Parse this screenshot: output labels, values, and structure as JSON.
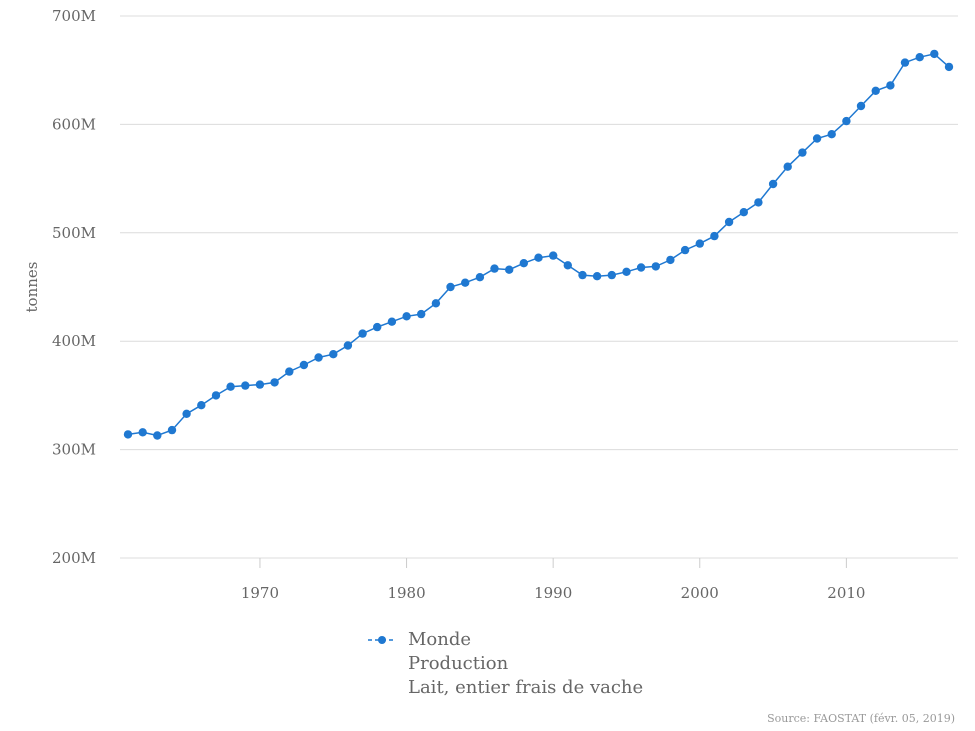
{
  "chart_data": {
    "type": "line",
    "ylabel": "tonnes",
    "xlim": [
      1961,
      2017
    ],
    "ylim": [
      200000000,
      700000000
    ],
    "y_ticks": [
      200000000,
      300000000,
      400000000,
      500000000,
      600000000,
      700000000
    ],
    "y_tick_labels": [
      "200M",
      "300M",
      "400M",
      "500M",
      "600M",
      "700M"
    ],
    "x_ticks": [
      1970,
      1980,
      1990,
      2000,
      2010
    ],
    "x_tick_labels": [
      "1970",
      "1980",
      "1990",
      "2000",
      "2010"
    ],
    "grid": true,
    "legend_position": "bottom",
    "color": "#1f78d1",
    "series": [
      {
        "name": "Monde",
        "x": [
          1961,
          1962,
          1963,
          1964,
          1965,
          1966,
          1967,
          1968,
          1969,
          1970,
          1971,
          1972,
          1973,
          1974,
          1975,
          1976,
          1977,
          1978,
          1979,
          1980,
          1981,
          1982,
          1983,
          1984,
          1985,
          1986,
          1987,
          1988,
          1989,
          1990,
          1991,
          1992,
          1993,
          1994,
          1995,
          1996,
          1997,
          1998,
          1999,
          2000,
          2001,
          2002,
          2003,
          2004,
          2005,
          2006,
          2007,
          2008,
          2009,
          2010,
          2011,
          2012,
          2013,
          2014,
          2015,
          2016,
          2017
        ],
        "values": [
          314000000,
          316000000,
          313000000,
          318000000,
          333000000,
          341000000,
          350000000,
          358000000,
          359000000,
          360000000,
          362000000,
          372000000,
          378000000,
          385000000,
          388000000,
          396000000,
          407000000,
          413000000,
          418000000,
          423000000,
          425000000,
          435000000,
          450000000,
          454000000,
          459000000,
          467000000,
          466000000,
          472000000,
          477000000,
          479000000,
          470000000,
          461000000,
          460000000,
          461000000,
          464000000,
          468000000,
          469000000,
          475000000,
          484000000,
          490000000,
          497000000,
          510000000,
          519000000,
          528000000,
          545000000,
          561000000,
          574000000,
          587000000,
          591000000,
          603000000,
          617000000,
          631000000,
          636000000,
          657000000,
          662000000,
          665000000,
          653000000
        ]
      }
    ]
  },
  "legend": {
    "line1": "Monde",
    "line2": "Production",
    "line3": "Lait, entier frais de vache"
  },
  "source": "Source: FAOSTAT (févr. 05, 2019)"
}
